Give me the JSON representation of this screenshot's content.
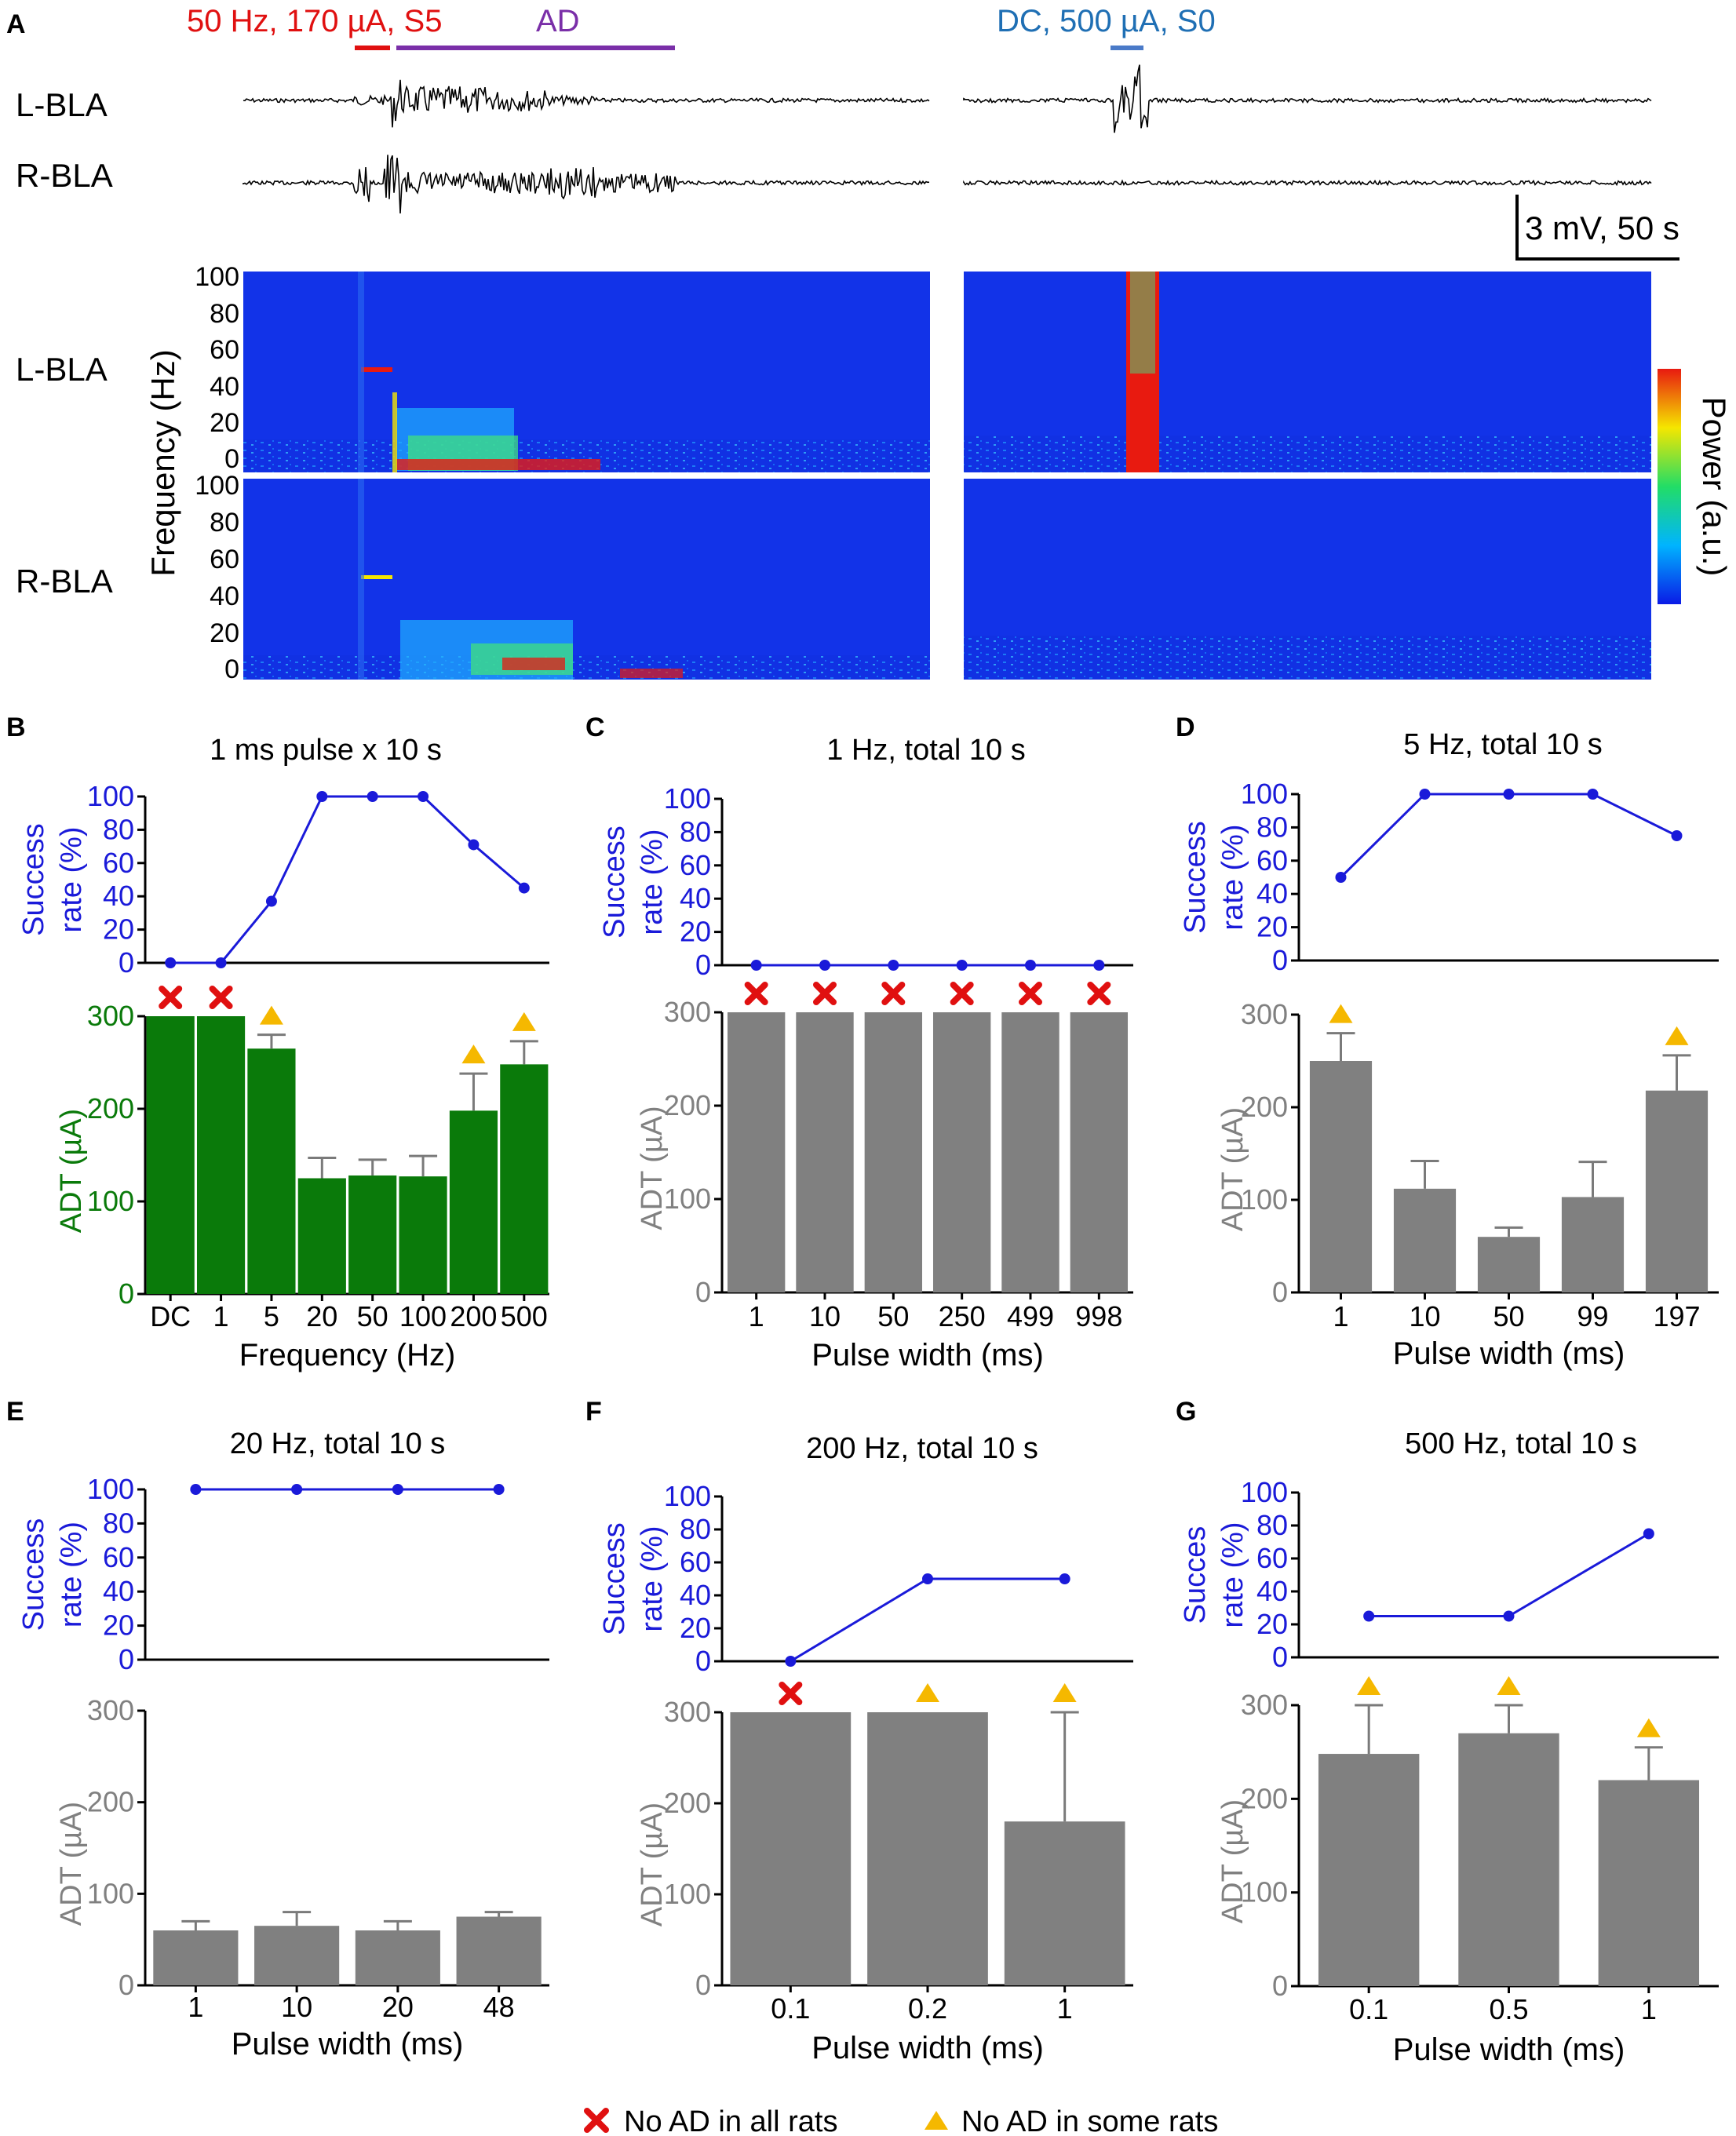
{
  "figure": {
    "panel_letters": [
      "A",
      "B",
      "C",
      "D",
      "E",
      "F",
      "G"
    ],
    "colors": {
      "blue": "#1a1ad9",
      "green": "#0a7a0a",
      "gray": "#808080",
      "red": "#e01010",
      "orange": "#f5b800",
      "purple": "#7a2fa8",
      "steelblue": "#1f6fb4",
      "black": "#000000"
    }
  },
  "panel_a": {
    "stim_left": {
      "label1": "50 Hz, 170 µA, S5",
      "label2": "AD"
    },
    "stim_right": {
      "label": "DC, 500 µA, S0"
    },
    "row_labels": {
      "l_bla": "L-BLA",
      "r_bla": "R-BLA"
    },
    "scale_bar": "3 mV, 50 s",
    "spectrogram": {
      "ylabel": "Frequency (Hz)",
      "yticks": [
        "100",
        "80",
        "60",
        "40",
        "20",
        "0"
      ],
      "colorbar_label": "Power (a.u.)"
    }
  },
  "legend": {
    "cross": "No AD in all rats",
    "triangle": "No AD in some rats"
  },
  "chart_data": [
    {
      "id": "B",
      "type": "bar",
      "title": "1 ms pulse x 10 s",
      "xlabel": "Frequency (Hz)",
      "categories": [
        "DC",
        "1",
        "5",
        "20",
        "50",
        "100",
        "200",
        "500"
      ],
      "bar_color": "#0a7a0a",
      "success": {
        "ylabel1": "Success",
        "ylabel2": "rate (%)",
        "ylim": [
          0,
          100
        ],
        "yticks": [
          "0",
          "20",
          "40",
          "60",
          "80",
          "100"
        ],
        "values": [
          0,
          0,
          37,
          100,
          100,
          100,
          71,
          45
        ]
      },
      "adt": {
        "ylabel": "ADT (µA)",
        "ylim": [
          0,
          300
        ],
        "yticks": [
          "0",
          "100",
          "200",
          "300"
        ],
        "values": [
          300,
          300,
          265,
          125,
          128,
          127,
          198,
          248
        ],
        "errors": [
          0,
          0,
          15,
          22,
          17,
          22,
          40,
          25
        ],
        "markers": [
          "x",
          "x",
          "triangle",
          "",
          "",
          "",
          "triangle",
          "triangle"
        ]
      }
    },
    {
      "id": "C",
      "type": "bar",
      "title": "1 Hz, total 10 s",
      "xlabel": "Pulse width (ms)",
      "categories": [
        "1",
        "10",
        "50",
        "250",
        "499",
        "998"
      ],
      "bar_color": "#808080",
      "success": {
        "ylabel1": "Success",
        "ylabel2": "rate (%)",
        "ylim": [
          0,
          100
        ],
        "yticks": [
          "0",
          "20",
          "40",
          "60",
          "80",
          "100"
        ],
        "values": [
          0,
          0,
          0,
          0,
          0,
          0
        ]
      },
      "adt": {
        "ylabel": "ADT (µA)",
        "ylim": [
          0,
          300
        ],
        "yticks": [
          "0",
          "100",
          "200",
          "300"
        ],
        "values": [
          300,
          300,
          300,
          300,
          300,
          300
        ],
        "errors": [
          0,
          0,
          0,
          0,
          0,
          0
        ],
        "markers": [
          "x",
          "x",
          "x",
          "x",
          "x",
          "x"
        ]
      }
    },
    {
      "id": "D",
      "type": "bar",
      "title": "5 Hz, total 10 s",
      "xlabel": "Pulse width (ms)",
      "categories": [
        "1",
        "10",
        "50",
        "99",
        "197"
      ],
      "bar_color": "#808080",
      "success": {
        "ylabel1": "Success",
        "ylabel2": "rate (%)",
        "ylim": [
          0,
          100
        ],
        "yticks": [
          "0",
          "20",
          "40",
          "60",
          "80",
          "100"
        ],
        "values": [
          50,
          100,
          100,
          100,
          75
        ]
      },
      "adt": {
        "ylabel": "ADT (µA)",
        "ylim": [
          0,
          300
        ],
        "yticks": [
          "0",
          "100",
          "200",
          "300"
        ],
        "values": [
          250,
          112,
          60,
          103,
          218
        ],
        "errors": [
          30,
          30,
          10,
          38,
          38
        ],
        "markers": [
          "triangle",
          "",
          "",
          "",
          "triangle"
        ]
      }
    },
    {
      "id": "E",
      "type": "bar",
      "title": "20 Hz, total 10 s",
      "xlabel": "Pulse width (ms)",
      "categories": [
        "1",
        "10",
        "20",
        "48"
      ],
      "bar_color": "#808080",
      "success": {
        "ylabel1": "Success",
        "ylabel2": "rate (%)",
        "ylim": [
          0,
          100
        ],
        "yticks": [
          "0",
          "20",
          "40",
          "60",
          "80",
          "100"
        ],
        "values": [
          100,
          100,
          100,
          100
        ]
      },
      "adt": {
        "ylabel": "ADT (µA)",
        "ylim": [
          0,
          300
        ],
        "yticks": [
          "0",
          "100",
          "200",
          "300"
        ],
        "values": [
          60,
          65,
          60,
          75
        ],
        "errors": [
          10,
          15,
          10,
          5
        ],
        "markers": [
          "",
          "",
          "",
          ""
        ]
      }
    },
    {
      "id": "F",
      "type": "bar",
      "title": "200 Hz, total 10 s",
      "xlabel": "Pulse width (ms)",
      "categories": [
        "0.1",
        "0.2",
        "1"
      ],
      "bar_color": "#808080",
      "success": {
        "ylabel1": "Success",
        "ylabel2": "rate (%)",
        "ylim": [
          0,
          100
        ],
        "yticks": [
          "0",
          "20",
          "40",
          "60",
          "80",
          "100"
        ],
        "values": [
          0,
          50,
          50
        ]
      },
      "adt": {
        "ylabel": "ADT (µA)",
        "ylim": [
          0,
          300
        ],
        "yticks": [
          "0",
          "100",
          "200",
          "300"
        ],
        "values": [
          300,
          300,
          180
        ],
        "errors": [
          0,
          0,
          120
        ],
        "markers": [
          "x",
          "triangle",
          "triangle"
        ]
      }
    },
    {
      "id": "G",
      "type": "bar",
      "title": "500 Hz, total 10 s",
      "xlabel": "Pulse width (ms)",
      "categories": [
        "0.1",
        "0.5",
        "1"
      ],
      "bar_color": "#808080",
      "success": {
        "ylabel1": "Succes",
        "ylabel2": "rate (%)",
        "ylim": [
          0,
          100
        ],
        "yticks": [
          "0",
          "20",
          "40",
          "60",
          "80",
          "100"
        ],
        "values": [
          25,
          25,
          75
        ]
      },
      "adt": {
        "ylabel": "ADT (µA)",
        "ylim": [
          0,
          300
        ],
        "yticks": [
          "0",
          "100",
          "200",
          "300"
        ],
        "values": [
          248,
          270,
          220
        ],
        "errors": [
          52,
          30,
          35
        ],
        "markers": [
          "triangle",
          "triangle",
          "triangle"
        ]
      }
    }
  ]
}
